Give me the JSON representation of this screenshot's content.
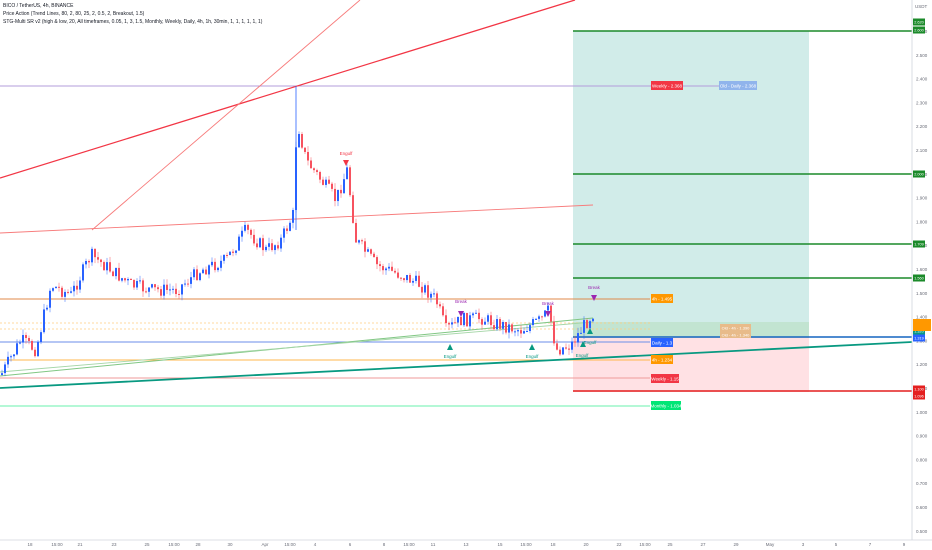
{
  "legend": {
    "symbol_line": "BICO / TetherUS, 4h, BINANCE",
    "indicator_1": "Price Action (Trend Lines, 80, 2, 80, 25, 2, 0.5, 2, Breakout, 1.5)",
    "indicator_2": "STG-Multi SR v2 (high & low, 20, All timeframes, 0.05, 1, 3, 1.5, Monthly, Weekly, Daily, 4h, 1h, 30min, 1, 1, 1, 1, 1, 1)"
  },
  "colors": {
    "bull": "#2962ff",
    "bear": "#f7525f",
    "profit_zone": "#b2dfdb",
    "loss_zone": "#ffcdd2",
    "target_green": "#1b8a2a",
    "stop_red": "#e41f1f"
  },
  "price_axis": {
    "ticks": [
      "2.600",
      "2.500",
      "2.400",
      "2.300",
      "2.200",
      "2.100",
      "2.000",
      "1.900",
      "1.800",
      "1.700",
      "1.600",
      "1.500",
      "1.400",
      "1.300",
      "1.200",
      "1.100",
      "1.000",
      "0.900",
      "0.800",
      "0.700",
      "0.600",
      "0.500"
    ],
    "top_label": "USDT"
  },
  "time_axis": {
    "ticks": [
      "18",
      "15:00",
      "21",
      "23",
      "25",
      "15:00",
      "28",
      "30",
      "Apr",
      "15:00",
      "4",
      "6",
      "8",
      "15:00",
      "11",
      "13",
      "15",
      "15:00",
      "18",
      "20",
      "22",
      "15:00",
      "25",
      "27",
      "29",
      "May",
      "3",
      "5",
      "7",
      "9"
    ]
  },
  "price_tags": [
    {
      "text": "2.620",
      "color": "#1b8a2a"
    },
    {
      "text": "2.600",
      "color": "#1b8a2a"
    },
    {
      "text": "2.000",
      "color": "#1b8a2a"
    },
    {
      "text": "1.709",
      "color": "#1b8a2a"
    },
    {
      "text": "1.560",
      "color": "#1b8a2a"
    },
    {
      "text": "1.340",
      "color": "#ff9800"
    },
    {
      "text": "1.320",
      "color": "#089981"
    },
    {
      "text": "1.319",
      "color": "#2962ff"
    },
    {
      "text": "1.100",
      "color": "#e41f1f"
    },
    {
      "text": "1.096",
      "color": "#e41f1f"
    }
  ],
  "level_labels": [
    {
      "text": "Weekly - 2.368",
      "color": "#f23645"
    },
    {
      "text": "Old - Daily - 2.368",
      "color": "#90b4ec"
    },
    {
      "text": "4h - 1.495",
      "color": "#ff9800"
    },
    {
      "text": "Old - 4h - 1.390",
      "color": "#e8bb8a"
    },
    {
      "text": "Old - 4h - 1.340",
      "color": "#e8bb8a"
    },
    {
      "text": "Daily - 1.3",
      "color": "#2962ff"
    },
    {
      "text": "4h - 1.234",
      "color": "#ff9800"
    },
    {
      "text": "Weekly - 1.15",
      "color": "#f23645"
    },
    {
      "text": "Monthly - 1.034",
      "color": "#00e676"
    }
  ],
  "annotations": [
    {
      "text": "Engulf",
      "color": "#f23645"
    },
    {
      "text": "Break",
      "color": "#9c27b0"
    },
    {
      "text": "Break",
      "color": "#9c27b0"
    },
    {
      "text": "Break",
      "color": "#9c27b0"
    },
    {
      "text": "Engulf",
      "color": "#089981"
    },
    {
      "text": "Engulf",
      "color": "#089981"
    },
    {
      "text": "Engulf",
      "color": "#089981"
    },
    {
      "text": "Engulf",
      "color": "#089981"
    }
  ]
}
